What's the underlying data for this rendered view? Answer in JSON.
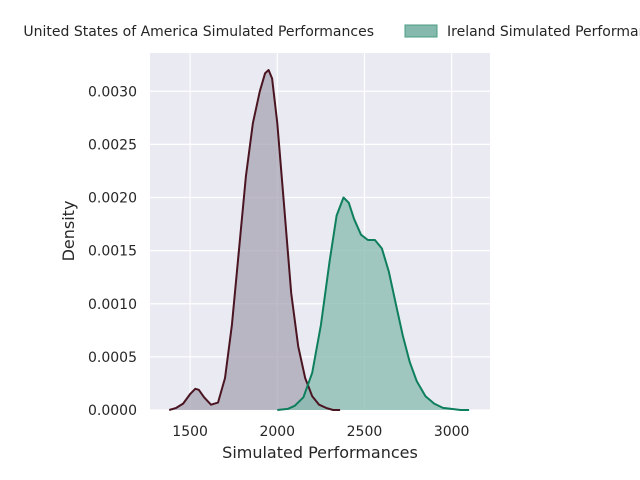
{
  "chart_data": {
    "type": "area",
    "title": "",
    "xlabel": "Simulated Performances",
    "ylabel": "Density",
    "xlim": [
      1270,
      3220
    ],
    "ylim": [
      0,
      0.00336
    ],
    "x_ticks": [
      1500,
      2000,
      2500,
      3000
    ],
    "x_tick_labels": [
      "1500",
      "2000",
      "2500",
      "3000"
    ],
    "y_ticks": [
      0,
      0.0005,
      0.001,
      0.0015,
      0.002,
      0.0025,
      0.003
    ],
    "y_tick_labels": [
      "0.0000",
      "0.0005",
      "0.0010",
      "0.0015",
      "0.0020",
      "0.0025",
      "0.0030"
    ],
    "grid": true,
    "legend_placement": "top",
    "legend": [
      "United States of America Simulated Performances",
      "Ireland Simulated Performances"
    ],
    "series": [
      {
        "name": "United States of America Simulated Performances",
        "line_color": "#4a1521",
        "fill_color": "#a8a4b4",
        "x": [
          1380,
          1420,
          1460,
          1500,
          1530,
          1550,
          1580,
          1620,
          1660,
          1700,
          1740,
          1780,
          1820,
          1860,
          1900,
          1930,
          1950,
          1970,
          2000,
          2040,
          2080,
          2120,
          2160,
          2200,
          2240,
          2280,
          2320,
          2360
        ],
        "values": [
          0.0,
          2e-05,
          6e-05,
          0.00015,
          0.0002,
          0.00019,
          0.00012,
          5e-05,
          7e-05,
          0.0003,
          0.0008,
          0.0015,
          0.0022,
          0.0027,
          0.003,
          0.00317,
          0.0032,
          0.00312,
          0.0027,
          0.0019,
          0.0011,
          0.0006,
          0.0003,
          0.00013,
          5e-05,
          2e-05,
          0.0,
          0.0
        ]
      },
      {
        "name": "Ireland Simulated Performances",
        "line_color": "#0e7f5c",
        "fill_color": "#86b9ad",
        "x": [
          2000,
          2060,
          2100,
          2150,
          2200,
          2250,
          2300,
          2340,
          2380,
          2410,
          2440,
          2480,
          2520,
          2560,
          2600,
          2640,
          2680,
          2720,
          2760,
          2800,
          2850,
          2900,
          2950,
          3000,
          3050,
          3100
        ],
        "values": [
          0.0,
          1e-05,
          4e-05,
          0.00012,
          0.00035,
          0.0008,
          0.0014,
          0.00183,
          0.002,
          0.00195,
          0.0018,
          0.00165,
          0.0016,
          0.0016,
          0.00152,
          0.0013,
          0.001,
          0.0007,
          0.00045,
          0.00027,
          0.00013,
          6e-05,
          2e-05,
          1e-05,
          0.0,
          0.0
        ]
      }
    ]
  }
}
